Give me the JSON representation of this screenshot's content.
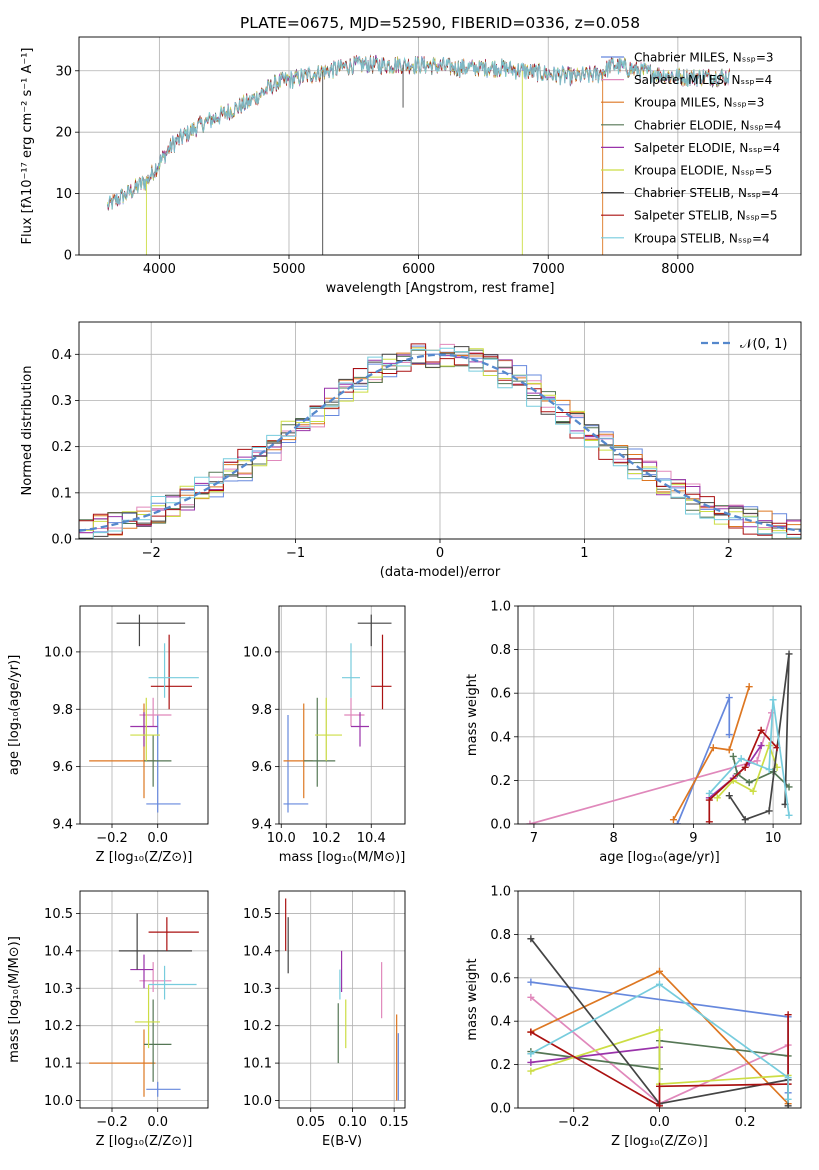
{
  "figure_title": "PLATE=0675, MJD=52590, FIBERID=0336, z=0.058",
  "model_colors": [
    "#6688dd",
    "#e088bb",
    "#dd7722",
    "#557755",
    "#9933aa",
    "#ccdd44",
    "#444444",
    "#aa1111",
    "#77ccdd"
  ],
  "chart_data": [
    {
      "id": "spectrum",
      "type": "line",
      "xlabel": "wavelength [Angstrom, rest frame]",
      "ylabel": "Flux [fλ10⁻¹⁷ erg cm⁻² s⁻¹ A⁻¹]",
      "xlim": [
        3380,
        8950
      ],
      "ylim": [
        0,
        35.5
      ],
      "xticks": [
        4000,
        5000,
        6000,
        7000,
        8000
      ],
      "yticks": [
        0,
        10,
        20,
        30
      ],
      "legend_position": "right",
      "legend": [
        "Chabrier MILES, Nₛₛₚ=3",
        "Salpeter MILES, Nₛₛₚ=4",
        "Kroupa MILES, Nₛₛₚ=3",
        "Chabrier ELODIE, Nₛₛₚ=4",
        "Salpeter ELODIE, Nₛₛₚ=4",
        "Kroupa ELODIE, Nₛₛₚ=5",
        "Chabrier STELIB, Nₛₛₚ=4",
        "Salpeter STELIB, Nₛₛₚ=5",
        "Kroupa STELIB, Nₛₛₚ=4"
      ],
      "continuum": [
        [
          3600,
          8
        ],
        [
          3750,
          10
        ],
        [
          3900,
          12
        ],
        [
          4000,
          15
        ],
        [
          4100,
          18
        ],
        [
          4300,
          21
        ],
        [
          4500,
          23
        ],
        [
          4700,
          25
        ],
        [
          4900,
          28
        ],
        [
          5100,
          29
        ],
        [
          5300,
          30
        ],
        [
          5500,
          31
        ],
        [
          5800,
          31
        ],
        [
          6000,
          31
        ],
        [
          6300,
          30.5
        ],
        [
          6600,
          30.5
        ],
        [
          6800,
          30
        ],
        [
          7000,
          29.5
        ],
        [
          7200,
          29
        ],
        [
          7400,
          29.5
        ],
        [
          7500,
          31
        ],
        [
          7700,
          30
        ],
        [
          8000,
          29
        ],
        [
          8400,
          29
        ]
      ]
    },
    {
      "id": "residuals",
      "type": "line",
      "xlabel": "(data-model)/error",
      "ylabel": "Normed distribution",
      "xlim": [
        -2.5,
        2.5
      ],
      "ylim": [
        0,
        0.47
      ],
      "xticks": [
        -2,
        -1,
        0,
        1,
        2
      ],
      "yticks": [
        0.0,
        0.1,
        0.2,
        0.3,
        0.4
      ],
      "legend_label": "𝒩(0, 1)",
      "legend_position": "top-right"
    },
    {
      "id": "age-vs-Z",
      "type": "scatter",
      "xlabel": "Z [log₁₀(Z/Z⊙)]",
      "ylabel": "age  [log₁₀(age/yr)]",
      "xlim": [
        -0.34,
        0.22
      ],
      "ylim": [
        9.4,
        10.16
      ],
      "xticks": [
        -0.2,
        0.0
      ],
      "yticks": [
        9.4,
        9.6,
        9.8,
        10.0
      ],
      "points": [
        [
          0.0,
          9.47,
          0.05,
          0.1,
          0.03,
          0.31
        ],
        [
          -0.02,
          9.78,
          0.06,
          0.08,
          0.04,
          0.06
        ],
        [
          -0.06,
          9.62,
          0.24,
          0.05,
          0.13,
          0.2
        ],
        [
          -0.02,
          9.62,
          0.04,
          0.08,
          0.09,
          0.09
        ],
        [
          -0.06,
          9.74,
          0.06,
          0.06,
          0.07,
          0.05
        ],
        [
          -0.05,
          9.71,
          0.07,
          0.06,
          0.09,
          0.13
        ],
        [
          -0.08,
          10.1,
          0.1,
          0.2,
          0.08,
          0.03
        ],
        [
          0.05,
          9.88,
          0.08,
          0.1,
          0.08,
          0.18
        ],
        [
          0.03,
          9.91,
          0.07,
          0.15,
          0.07,
          0.12
        ]
      ]
    },
    {
      "id": "age-vs-mass",
      "type": "scatter",
      "xlabel": "mass [log₁₀(M/M⊙)]",
      "ylabel": "",
      "xlim": [
        9.99,
        10.55
      ],
      "ylim": [
        9.4,
        10.16
      ],
      "xticks": [
        10.0,
        10.2,
        10.4
      ],
      "yticks": [
        9.4,
        9.6,
        9.8,
        10.0
      ],
      "points": [
        [
          10.03,
          9.47,
          0.02,
          0.09,
          0.03,
          0.31
        ],
        [
          10.31,
          9.78,
          0.03,
          0.06,
          0.04,
          0.06
        ],
        [
          10.1,
          9.62,
          0.09,
          0.04,
          0.13,
          0.2
        ],
        [
          10.16,
          9.62,
          0.06,
          0.08,
          0.09,
          0.22
        ],
        [
          10.35,
          9.74,
          0.04,
          0.04,
          0.07,
          0.05
        ],
        [
          10.2,
          9.71,
          0.05,
          0.07,
          0.09,
          0.13
        ],
        [
          10.4,
          10.1,
          0.06,
          0.09,
          0.08,
          0.03
        ],
        [
          10.45,
          9.88,
          0.05,
          0.04,
          0.08,
          0.18
        ],
        [
          10.31,
          9.91,
          0.04,
          0.04,
          0.07,
          0.12
        ]
      ]
    },
    {
      "id": "weight-vs-age",
      "type": "line",
      "xlabel": "age  [log₁₀(age/yr)]",
      "ylabel": "mass weight",
      "xlim": [
        6.8,
        10.35
      ],
      "ylim": [
        0.0,
        1.0
      ],
      "xticks": [
        7,
        8,
        9,
        10
      ],
      "yticks": [
        0.0,
        0.2,
        0.4,
        0.6,
        0.8,
        1.0
      ],
      "series": [
        [
          [
            8.8,
            0.0
          ],
          [
            9.45,
            0.58
          ],
          [
            9.45,
            0.41
          ]
        ],
        [
          [
            6.95,
            0.0
          ],
          [
            9.8,
            0.29
          ],
          [
            9.98,
            0.51
          ]
        ],
        [
          [
            8.75,
            0.02
          ],
          [
            9.25,
            0.35
          ],
          [
            9.45,
            0.34
          ],
          [
            9.7,
            0.63
          ]
        ],
        [
          [
            9.5,
            0.31
          ],
          [
            9.55,
            0.23
          ],
          [
            9.7,
            0.19
          ],
          [
            10.0,
            0.24
          ],
          [
            10.2,
            0.17
          ]
        ],
        [
          [
            9.2,
            0.12
          ],
          [
            9.5,
            0.21
          ],
          [
            9.7,
            0.28
          ],
          [
            9.85,
            0.36
          ]
        ],
        [
          [
            9.3,
            0.12
          ],
          [
            9.5,
            0.2
          ],
          [
            9.75,
            0.15
          ],
          [
            9.95,
            0.36
          ],
          [
            10.05,
            0.26
          ]
        ],
        [
          [
            9.45,
            0.13
          ],
          [
            9.65,
            0.02
          ],
          [
            9.95,
            0.06
          ],
          [
            10.2,
            0.78
          ],
          [
            10.15,
            0.09
          ]
        ],
        [
          [
            9.2,
            0.01
          ],
          [
            9.2,
            0.11
          ],
          [
            9.65,
            0.26
          ],
          [
            9.85,
            0.43
          ],
          [
            10.05,
            0.35
          ]
        ],
        [
          [
            9.2,
            0.14
          ],
          [
            9.6,
            0.3
          ],
          [
            9.95,
            0.25
          ],
          [
            10.0,
            0.57
          ],
          [
            10.2,
            0.04
          ]
        ]
      ]
    },
    {
      "id": "mass-vs-Z",
      "type": "scatter",
      "xlabel": "Z [log₁₀(Z/Z⊙)]",
      "ylabel": "mass [log₁₀(M/M⊙)]",
      "xlim": [
        -0.34,
        0.22
      ],
      "ylim": [
        9.98,
        10.56
      ],
      "xticks": [
        -0.2,
        0.0
      ],
      "yticks": [
        10.0,
        10.1,
        10.2,
        10.3,
        10.4,
        10.5
      ],
      "points": [
        [
          0.0,
          10.03,
          0.05,
          0.1,
          0.02,
          0.02
        ],
        [
          -0.02,
          10.32,
          0.06,
          0.08,
          0.03,
          0.05
        ],
        [
          -0.06,
          10.1,
          0.24,
          0.05,
          0.09,
          0.09
        ],
        [
          -0.02,
          10.15,
          0.04,
          0.08,
          0.1,
          0.12
        ],
        [
          -0.06,
          10.35,
          0.06,
          0.04,
          0.05,
          0.04
        ],
        [
          -0.04,
          10.21,
          0.06,
          0.05,
          0.07,
          0.1
        ],
        [
          -0.09,
          10.4,
          0.08,
          0.24,
          0.05,
          0.1
        ],
        [
          0.04,
          10.45,
          0.08,
          0.14,
          0.05,
          0.04
        ],
        [
          0.03,
          10.31,
          0.07,
          0.14,
          0.04,
          0.05
        ]
      ]
    },
    {
      "id": "mass-vs-ebv",
      "type": "scatter",
      "xlabel": "E(B-V)",
      "ylabel": "",
      "xlim": [
        0.012,
        0.163
      ],
      "ylim": [
        9.98,
        10.56
      ],
      "xticks": [
        0.05,
        0.1,
        0.15
      ],
      "yticks": [
        10.0,
        10.1,
        10.2,
        10.3,
        10.4,
        10.5
      ],
      "points": [
        [
          0.155,
          10.0,
          0,
          0,
          0.0,
          0.18
        ],
        [
          0.135,
          10.22,
          0,
          0,
          0.0,
          0.15
        ],
        [
          0.153,
          10.0,
          0,
          0,
          0.0,
          0.23
        ],
        [
          0.083,
          10.1,
          0,
          0,
          0.0,
          0.16
        ],
        [
          0.087,
          10.29,
          0,
          0,
          0.0,
          0.11
        ],
        [
          0.092,
          10.14,
          0,
          0,
          0.0,
          0.13
        ],
        [
          0.023,
          10.34,
          0,
          0,
          0.0,
          0.15
        ],
        [
          0.02,
          10.4,
          0,
          0,
          0.0,
          0.14
        ],
        [
          0.085,
          10.27,
          0,
          0,
          0.0,
          0.08
        ]
      ]
    },
    {
      "id": "weight-vs-Z",
      "type": "line",
      "xlabel": "Z [log₁₀(Z/Z⊙)]",
      "ylabel": "mass weight",
      "xlim": [
        -0.33,
        0.33
      ],
      "ylim": [
        0.0,
        1.0
      ],
      "xticks": [
        -0.2,
        0.0,
        0.2
      ],
      "yticks": [
        0.0,
        0.2,
        0.4,
        0.6,
        0.8,
        1.0
      ],
      "series": [
        [
          [
            -0.3,
            0.58
          ],
          [
            0.3,
            0.42
          ],
          [
            0.3,
            0.07
          ]
        ],
        [
          [
            -0.3,
            0.51
          ],
          [
            0.0,
            0.02
          ],
          [
            0.3,
            0.29
          ]
        ],
        [
          [
            -0.3,
            0.35
          ],
          [
            0.0,
            0.63
          ],
          [
            0.3,
            0.02
          ]
        ],
        [
          [
            -0.3,
            0.26
          ],
          [
            0.0,
            0.18
          ],
          [
            0.0,
            0.31
          ],
          [
            0.3,
            0.24
          ]
        ],
        [
          [
            -0.3,
            0.21
          ],
          [
            0.0,
            0.28
          ]
        ],
        [
          [
            -0.3,
            0.17
          ],
          [
            0.0,
            0.36
          ],
          [
            0.0,
            0.11
          ],
          [
            0.3,
            0.15
          ]
        ],
        [
          [
            -0.3,
            0.78
          ],
          [
            0.0,
            0.02
          ],
          [
            0.3,
            0.13
          ],
          [
            0.3,
            0.01
          ]
        ],
        [
          [
            -0.3,
            0.35
          ],
          [
            0.0,
            0.01
          ],
          [
            0.0,
            0.1
          ],
          [
            0.3,
            0.11
          ],
          [
            0.3,
            0.43
          ]
        ],
        [
          [
            -0.3,
            0.25
          ],
          [
            0.0,
            0.57
          ],
          [
            0.3,
            0.14
          ],
          [
            0.3,
            0.04
          ]
        ]
      ]
    }
  ]
}
